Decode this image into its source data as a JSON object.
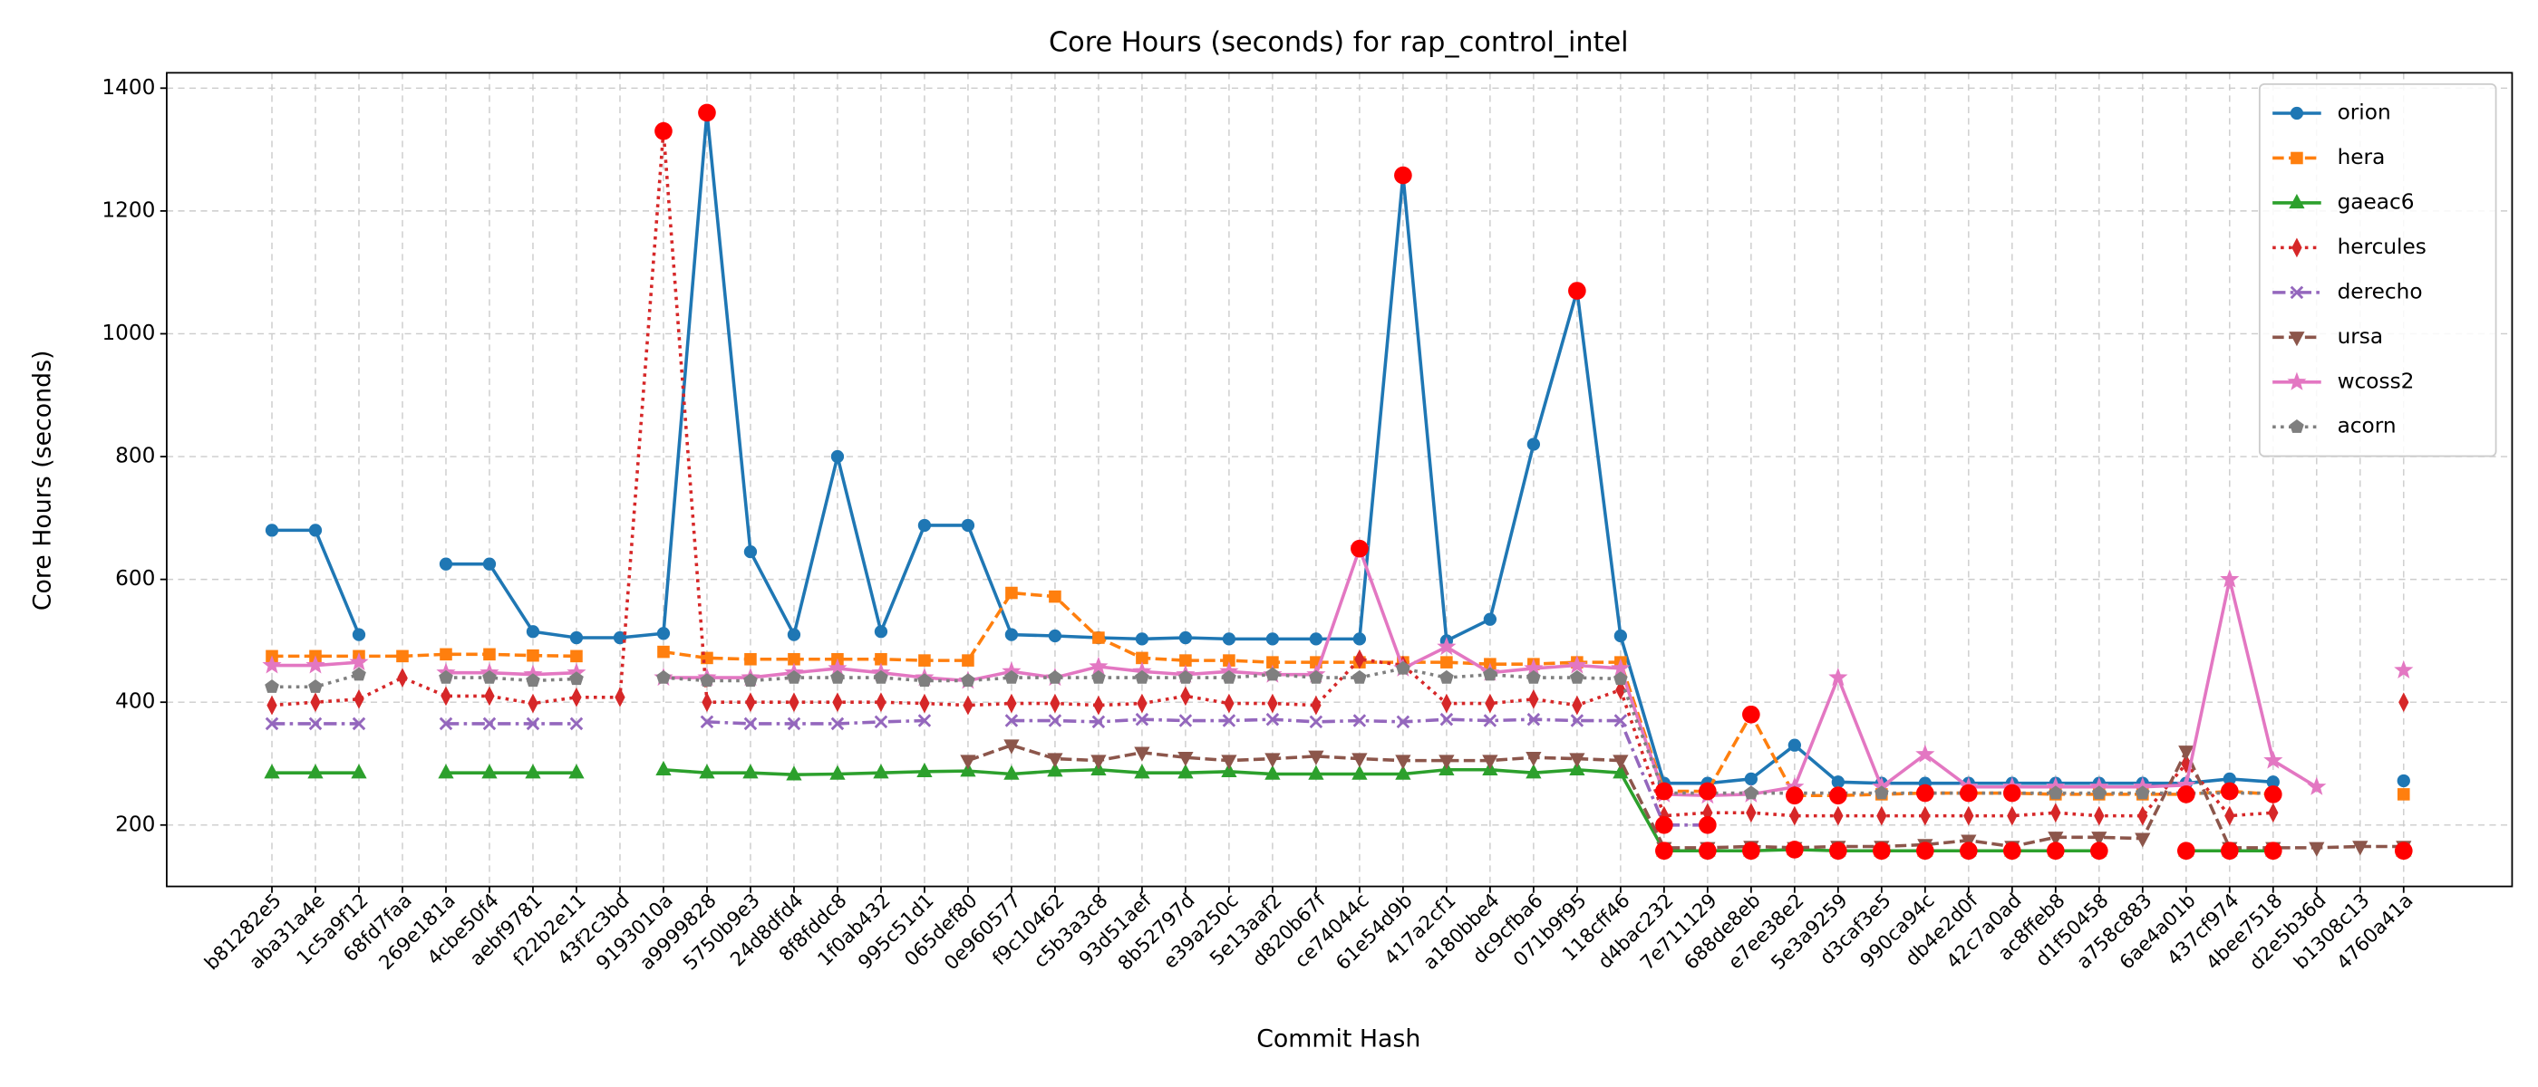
{
  "chart_data": {
    "type": "line",
    "title": "Core Hours (seconds) for rap_control_intel",
    "x_label": "Commit Hash",
    "y_label": "Core Hours (seconds)",
    "categories": [
      "b81282e5",
      "aba31a4e",
      "1c5a9f12",
      "68fd7faa",
      "269e181a",
      "4cbe50f4",
      "aebf9781",
      "f22b2e11",
      "43f2c3bd",
      "9193010a",
      "a9999828",
      "5750b9e3",
      "24d8dfd4",
      "8f8fddc8",
      "1f0ab432",
      "995c51d1",
      "065def80",
      "0e960577",
      "f9c10462",
      "c5b3a3c8",
      "93d51aef",
      "8b52797d",
      "e39a250c",
      "5e13aaf2",
      "d820b67f",
      "ce74044c",
      "61e54d9b",
      "417a2cf1",
      "a180bbe4",
      "dc9cfba6",
      "071b9f95",
      "118cff46",
      "d4bac232",
      "7e711129",
      "688de8eb",
      "e7ee38e2",
      "5e3a9259",
      "d3caf3e5",
      "990ca94c",
      "db4e2d0f",
      "42c7a0ad",
      "ac8ffeb8",
      "d1f50458",
      "a758c883",
      "6ae4a01b",
      "437cf974",
      "4bee7518",
      "d2e5b36d",
      "b1308c13",
      "4760a41a"
    ],
    "ylim": [
      100,
      1425
    ],
    "yticks": [
      200,
      400,
      600,
      800,
      1000,
      1200,
      1400
    ],
    "grid": true,
    "legend": "upper right",
    "highlight_color": "#ff0000",
    "series": [
      {
        "name": "orion",
        "color": "#1f77b4",
        "marker": "circle",
        "dash": "solid",
        "values": [
          680,
          680,
          510,
          null,
          625,
          625,
          515,
          505,
          505,
          512,
          1360,
          645,
          510,
          800,
          515,
          688,
          688,
          510,
          508,
          505,
          503,
          505,
          503,
          503,
          503,
          503,
          1258,
          500,
          535,
          820,
          1070,
          508,
          268,
          268,
          275,
          330,
          270,
          268,
          268,
          268,
          268,
          268,
          268,
          268,
          268,
          275,
          270,
          null,
          null,
          272
        ],
        "outliers": [
          10,
          26,
          30
        ]
      },
      {
        "name": "hera",
        "color": "#ff7f0e",
        "marker": "square",
        "dash": "dashed",
        "values": [
          475,
          475,
          475,
          475,
          478,
          478,
          476,
          475,
          null,
          482,
          472,
          470,
          470,
          470,
          470,
          468,
          468,
          578,
          572,
          505,
          472,
          468,
          468,
          465,
          465,
          465,
          465,
          465,
          462,
          462,
          465,
          465,
          255,
          255,
          380,
          248,
          248,
          250,
          252,
          252,
          252,
          250,
          250,
          250,
          250,
          255,
          250,
          null,
          null,
          250
        ],
        "outliers": [
          32,
          33,
          34,
          35,
          36,
          38,
          39,
          40,
          44,
          45,
          46
        ]
      },
      {
        "name": "gaeac6",
        "color": "#2ca02c",
        "marker": "triangle-up",
        "dash": "solid",
        "values": [
          285,
          285,
          285,
          null,
          285,
          285,
          285,
          285,
          null,
          290,
          285,
          285,
          282,
          283,
          285,
          287,
          288,
          283,
          288,
          290,
          285,
          285,
          287,
          283,
          283,
          283,
          283,
          290,
          290,
          285,
          290,
          285,
          158,
          158,
          158,
          160,
          158,
          158,
          158,
          158,
          158,
          158,
          158,
          null,
          158,
          158,
          158,
          null,
          null,
          158
        ],
        "outliers": [
          32,
          33,
          34,
          35,
          36,
          37,
          38,
          39,
          40,
          41,
          42,
          44,
          45,
          46,
          49
        ]
      },
      {
        "name": "hercules",
        "color": "#d62728",
        "marker": "thin-diamond",
        "dash": "dotted",
        "values": [
          395,
          400,
          405,
          440,
          410,
          410,
          398,
          408,
          408,
          1330,
          400,
          400,
          400,
          400,
          400,
          398,
          395,
          398,
          398,
          395,
          398,
          410,
          398,
          398,
          395,
          470,
          460,
          398,
          398,
          405,
          395,
          420,
          215,
          220,
          220,
          215,
          215,
          215,
          215,
          215,
          215,
          220,
          215,
          215,
          300,
          215,
          220,
          null,
          null,
          400
        ],
        "outliers": [
          9
        ]
      },
      {
        "name": "derecho",
        "color": "#9467bd",
        "marker": "x",
        "dash": "dashdot",
        "values": [
          365,
          365,
          365,
          null,
          365,
          365,
          365,
          365,
          null,
          null,
          368,
          365,
          365,
          365,
          368,
          370,
          null,
          370,
          370,
          368,
          372,
          370,
          370,
          372,
          368,
          370,
          368,
          372,
          370,
          372,
          370,
          370,
          200,
          200,
          null,
          null,
          null,
          null,
          null,
          null,
          null,
          null,
          null,
          null,
          null,
          null,
          null,
          null,
          null,
          null
        ],
        "outliers": [
          32,
          33
        ]
      },
      {
        "name": "ursa",
        "color": "#8c564b",
        "marker": "triangle-down",
        "dash": "dashed",
        "values": [
          null,
          null,
          null,
          null,
          null,
          null,
          null,
          null,
          null,
          null,
          null,
          null,
          null,
          null,
          null,
          null,
          305,
          330,
          308,
          305,
          318,
          310,
          305,
          308,
          312,
          308,
          305,
          305,
          305,
          310,
          308,
          305,
          163,
          163,
          165,
          163,
          165,
          165,
          168,
          175,
          165,
          180,
          180,
          178,
          320,
          163,
          163,
          163,
          165,
          165
        ],
        "outliers": []
      },
      {
        "name": "wcoss2",
        "color": "#e377c2",
        "marker": "star",
        "dash": "solid",
        "values": [
          460,
          460,
          465,
          null,
          448,
          448,
          445,
          448,
          null,
          440,
          440,
          440,
          448,
          455,
          448,
          440,
          435,
          450,
          440,
          458,
          450,
          445,
          450,
          445,
          445,
          650,
          455,
          490,
          448,
          455,
          460,
          455,
          250,
          248,
          250,
          262,
          440,
          262,
          315,
          262,
          262,
          262,
          262,
          262,
          265,
          600,
          305,
          262,
          null,
          452
        ],
        "outliers": [
          25
        ]
      },
      {
        "name": "acorn",
        "color": "#7f7f7f",
        "marker": "pentagon",
        "dash": "dotted",
        "values": [
          425,
          425,
          445,
          null,
          440,
          440,
          435,
          438,
          null,
          440,
          435,
          435,
          440,
          440,
          440,
          435,
          435,
          440,
          440,
          440,
          440,
          440,
          440,
          445,
          440,
          440,
          455,
          440,
          445,
          440,
          440,
          438,
          252,
          252,
          252,
          252,
          252,
          252,
          252,
          252,
          252,
          252,
          252,
          252,
          252,
          252,
          252,
          null,
          null,
          null
        ],
        "outliers": []
      }
    ]
  }
}
